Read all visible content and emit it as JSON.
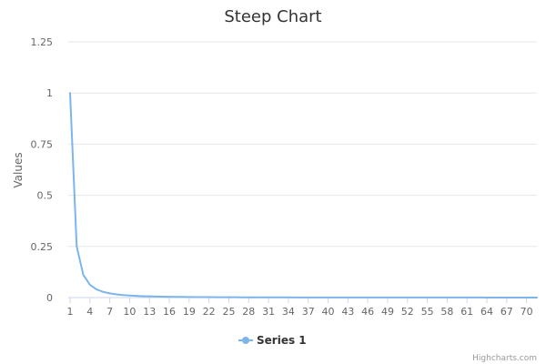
{
  "chart_data": {
    "type": "line",
    "title": "Steep Chart",
    "ylabel": "Values",
    "xlabel": "",
    "ylim": [
      0,
      1.25
    ],
    "xlim": [
      1,
      73
    ],
    "y_ticks": [
      "0",
      "0.25",
      "0.5",
      "0.75",
      "1",
      "1.25"
    ],
    "x_ticks": [
      "1",
      "4",
      "7",
      "10",
      "13",
      "16",
      "19",
      "22",
      "25",
      "28",
      "31",
      "34",
      "37",
      "40",
      "43",
      "46",
      "49",
      "52",
      "55",
      "58",
      "61",
      "64",
      "67",
      "70"
    ],
    "grid": true,
    "legend_placement": "bottom-center",
    "series": [
      {
        "name": "Series 1",
        "color": "#7cb5ec",
        "x": [
          1,
          2,
          3,
          4,
          5,
          6,
          7,
          8,
          9,
          10,
          11,
          12,
          13,
          14,
          15,
          16,
          17,
          18,
          19,
          20,
          21,
          22,
          23,
          24,
          25,
          26,
          27,
          28,
          29,
          30,
          31,
          32,
          33,
          34,
          35,
          36,
          37,
          38,
          39,
          40,
          41,
          42,
          43,
          44,
          45,
          46,
          47,
          48,
          49,
          50,
          51,
          52,
          53,
          54,
          55,
          56,
          57,
          58,
          59,
          60,
          61,
          62,
          63,
          64,
          65,
          66,
          67,
          68,
          69,
          70,
          71,
          72,
          73
        ],
        "values": [
          1,
          0.25,
          0.111,
          0.0625,
          0.04,
          0.0278,
          0.0204,
          0.0156,
          0.0123,
          0.01,
          0.0083,
          0.0069,
          0.0059,
          0.0051,
          0.0044,
          0.0039,
          0.0035,
          0.0031,
          0.0028,
          0.0025,
          0.0023,
          0.0021,
          0.0019,
          0.0017,
          0.0016,
          0.0015,
          0.0014,
          0.0013,
          0.0012,
          0.0011,
          0.001,
          0.001,
          0.0009,
          0.0009,
          0.0008,
          0.0008,
          0.0007,
          0.0007,
          0.0007,
          0.0006,
          0.0006,
          0.0006,
          0.0005,
          0.0005,
          0.0005,
          0.0005,
          0.0005,
          0.0004,
          0.0004,
          0.0004,
          0.0004,
          0.0004,
          0.0004,
          0.0003,
          0.0003,
          0.0003,
          0.0003,
          0.0003,
          0.0003,
          0.0003,
          0.0003,
          0.0003,
          0.0003,
          0.0002,
          0.0002,
          0.0002,
          0.0002,
          0.0002,
          0.0002,
          0.0002,
          0.0002,
          0.0002,
          0.0002
        ]
      }
    ]
  },
  "credits": "Highcharts.com"
}
